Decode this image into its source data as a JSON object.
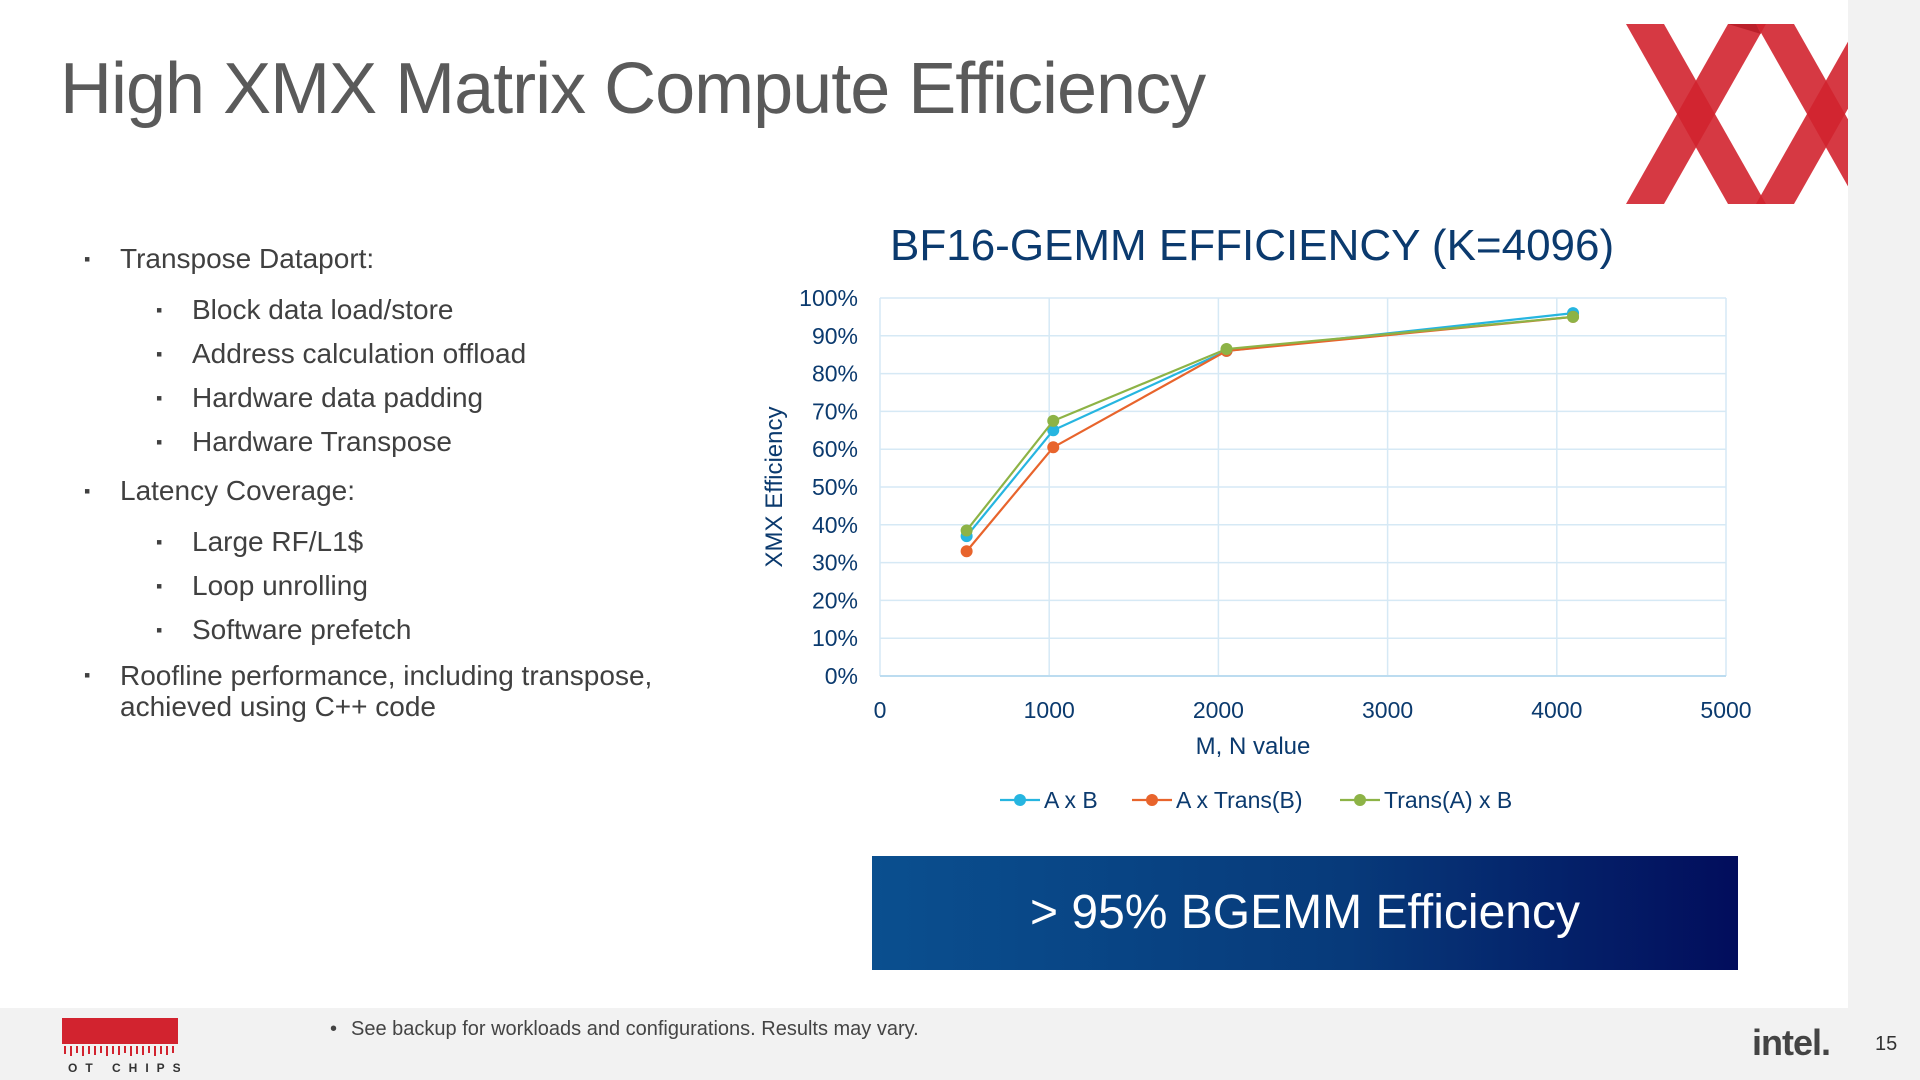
{
  "slide": {
    "title": "High XMX Matrix Compute Efficiency",
    "page_number": "15",
    "footnote": "See backup for workloads and configurations. Results may vary.",
    "brand_logo_text": "intel.",
    "event_logo_text": "HOT CHIPS",
    "callout": "> 95% BGEMM Efficiency"
  },
  "bullets": [
    {
      "text": "Transpose Dataport:",
      "sub": [
        "Block data load/store",
        "Address calculation offload",
        "Hardware data padding",
        "Hardware Transpose"
      ]
    },
    {
      "text": "Latency Coverage:",
      "sub": [
        "Large RF/L1$",
        "Loop unrolling",
        "Software prefetch"
      ]
    },
    {
      "text": "Roofline performance, including transpose, achieved using C++ code",
      "sub": []
    }
  ],
  "colors": {
    "title_text": "#5a5a5a",
    "chart_text": "#0b3a6e",
    "grid": "#d6e9f5",
    "series_AxB": "#26b5e0",
    "series_AxTransB": "#e8642c",
    "series_TransAxB": "#8db346",
    "callout_bg": "#073a7a",
    "logo_red": "#d2232f"
  },
  "chart_data": {
    "type": "line",
    "title": "BF16-GEMM EFFICIENCY (K=4096)",
    "xlabel": "M, N value",
    "ylabel": "XMX Efficiency",
    "xlim": [
      0,
      5000
    ],
    "ylim": [
      0,
      1
    ],
    "x_ticks": [
      "0",
      "1000",
      "2000",
      "3000",
      "4000",
      "5000"
    ],
    "y_ticks": [
      "0%",
      "10%",
      "20%",
      "30%",
      "40%",
      "50%",
      "60%",
      "70%",
      "80%",
      "90%",
      "100%"
    ],
    "grid": true,
    "legend_position": "bottom",
    "x": [
      512,
      1024,
      2048,
      4096
    ],
    "series": [
      {
        "name": "A x B",
        "values": [
          0.37,
          0.65,
          0.86,
          0.96
        ]
      },
      {
        "name": "A x Trans(B)",
        "values": [
          0.33,
          0.605,
          0.86,
          0.95
        ]
      },
      {
        "name": "Trans(A) x B",
        "values": [
          0.385,
          0.675,
          0.865,
          0.95
        ]
      }
    ]
  }
}
